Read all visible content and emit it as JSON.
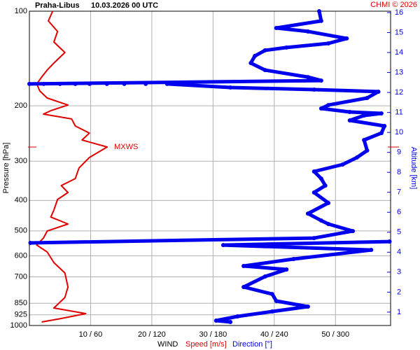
{
  "chart_data": {
    "type": "line",
    "title": "Praha-Libus",
    "subtitle": "10.03.2026 00 UTC",
    "credit": "CHMI © 2026",
    "y_label": "Pressure [hPa]",
    "y2_label": "Altitude [km]",
    "x_label": "WIND",
    "ylim": [
      100,
      1000
    ],
    "y_log": true,
    "yticks": [
      100,
      200,
      300,
      400,
      500,
      600,
      700,
      850,
      925,
      1000
    ],
    "xlim": [
      0,
      59
    ],
    "xticks": [
      {
        "value": 10,
        "label": "10 / 60"
      },
      {
        "value": 20,
        "label": "20 / 120"
      },
      {
        "value": 30,
        "label": "30 / 180"
      },
      {
        "value": 40,
        "label": "40 / 240"
      },
      {
        "value": 50,
        "label": "50 / 300"
      }
    ],
    "x2lim": [
      0,
      354
    ],
    "y2lim": [
      0.33,
      16.07
    ],
    "y2ticks": [
      1,
      2,
      3,
      4,
      5,
      6,
      7,
      8,
      9,
      10,
      11,
      12,
      13,
      14,
      15,
      16
    ],
    "grid": true,
    "annotation": {
      "text": "MXWS",
      "x": 12.7,
      "y": 270.5
    },
    "series": [
      {
        "name": "Speed [m/s]",
        "color": "#e00000",
        "x": [
          3.8,
          3.1,
          4.6,
          4.0,
          5.8,
          4.0,
          2.9,
          2.0,
          1.2,
          1.7,
          2.9,
          6.3,
          3.5,
          2.3,
          6.9,
          7.5,
          9.8,
          8.6,
          12.7,
          9.8,
          8.1,
          7.5,
          5.2,
          6.3,
          4.6,
          4.0,
          3.5,
          6.3,
          2.9,
          2.3,
          1.2,
          2.9,
          4.0,
          5.8,
          6.3,
          5.8,
          4.0,
          9.2,
          5.2,
          2.0
        ],
        "y": [
          100,
          107.4,
          116.0,
          125.3,
          135.3,
          146.2,
          153.9,
          162.0,
          170.4,
          179.4,
          188.9,
          198.9,
          207.2,
          212.5,
          220.2,
          231.9,
          244.2,
          256.9,
          270.5,
          292.1,
          315.5,
          340.8,
          358.7,
          377.5,
          397.2,
          429.2,
          451.8,
          475.5,
          500.6,
          527.0,
          554.7,
          583.7,
          630.5,
          680.8,
          754.4,
          814.6,
          879.8,
          916.6,
          950.1,
          974.9
        ]
      },
      {
        "name": "Direction [°]",
        "color": "#0000ee",
        "axis": "x2",
        "x": [
          284,
          286,
          242,
          273,
          311,
          293,
          252,
          231,
          221,
          217,
          231,
          273,
          286,
          0,
          null,
          14,
          null,
          30,
          null,
          45,
          null,
          59,
          null,
          76,
          null,
          93,
          null,
          114,
          null,
          135,
          197,
          279,
          342,
          331,
          293,
          286,
          314,
          345,
          328,
          314,
          348,
          345,
          328,
          331,
          321,
          307,
          279,
          286,
          290,
          279,
          293,
          273,
          286,
          293,
          317,
          279,
          1,
          null,
          353,
          190,
          335,
          259,
          210,
          252,
          231,
          210,
          238,
          242,
          273,
          238,
          204,
          183,
          197
        ],
        "y": [
          100,
          107.4,
          113.1,
          116.0,
          122.1,
          126.6,
          130.5,
          133.2,
          138.8,
          146.2,
          153.9,
          162.0,
          166.2,
          170.4,
          null,
          170.4,
          null,
          170.4,
          null,
          170.4,
          null,
          170.4,
          null,
          170.4,
          null,
          170.4,
          null,
          170.4,
          null,
          170.4,
          174.9,
          177.6,
          180.3,
          188.9,
          198.9,
          204.0,
          209.3,
          211.4,
          214.7,
          222.5,
          231.9,
          244.2,
          256.9,
          277.5,
          292.1,
          307.5,
          323.6,
          340.8,
          358.7,
          377.5,
          407.5,
          440.4,
          463.5,
          475.5,
          500.6,
          527.0,
          546.0,
          null,
          540.6,
          554.7,
          574.9,
          614.3,
          646.8,
          663.6,
          698.5,
          754.4,
          794.2,
          835.6,
          870.9,
          902.6,
          935.5,
          964.8,
          974.9
        ]
      }
    ]
  }
}
